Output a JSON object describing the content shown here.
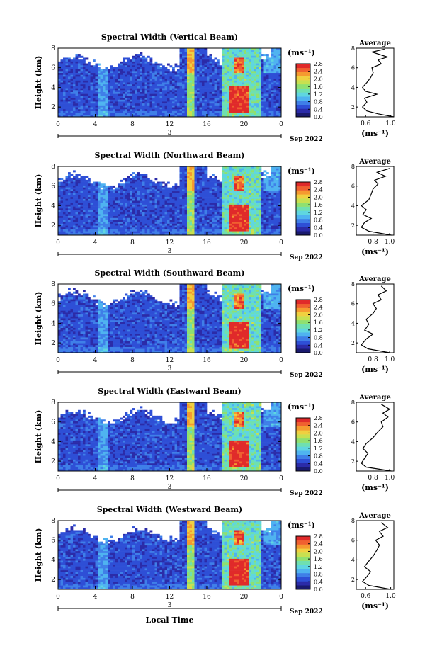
{
  "figure": {
    "xlabel_bottom": "Local Time",
    "cbar_unit": "(ms⁻¹)",
    "date_label": "Sep 2022",
    "day_label": "3",
    "avg_title": "Average",
    "avg_xlabel": "(ms⁻¹)",
    "height_label": "Height (km)"
  },
  "colormap": [
    "#1a1a6e",
    "#2b2ba8",
    "#2e4fd6",
    "#3f7fe8",
    "#4fb3f0",
    "#5fd6e0",
    "#6fe0b0",
    "#8fe070",
    "#c8e050",
    "#f0d040",
    "#f59a30",
    "#f06030",
    "#e02a2a"
  ],
  "chart_data": [
    {
      "type": "heatmap",
      "title": "Spectral Width (Vertical Beam)",
      "xlabel": "",
      "ylabel": "Height (km)",
      "x_ticks": [
        "0",
        "4",
        "8",
        "12",
        "16",
        "20",
        "0"
      ],
      "y_ticks": [
        "2",
        "4",
        "6",
        "8"
      ],
      "xlim": [
        0,
        24
      ],
      "ylim": [
        1,
        8
      ],
      "cbar_ticks": [
        "0.0",
        "0.4",
        "0.8",
        "1.2",
        "1.6",
        "2.0",
        "2.4",
        "2.8"
      ],
      "cbar_range": [
        0,
        2.8
      ],
      "average": {
        "x_ticks": [
          "0.6",
          "1.0"
        ],
        "xlim": [
          0.45,
          1.05
        ],
        "ylim": [
          1,
          8
        ],
        "profile": [
          [
            1.05,
            1.0
          ],
          [
            0.8,
            1.3
          ],
          [
            0.62,
            1.6
          ],
          [
            0.55,
            2.0
          ],
          [
            0.62,
            2.5
          ],
          [
            0.58,
            2.9
          ],
          [
            0.78,
            3.3
          ],
          [
            0.6,
            3.6
          ],
          [
            0.55,
            4.0
          ],
          [
            0.62,
            4.5
          ],
          [
            0.68,
            5.0
          ],
          [
            0.72,
            5.5
          ],
          [
            0.7,
            6.0
          ],
          [
            0.85,
            6.4
          ],
          [
            0.8,
            6.8
          ],
          [
            0.95,
            7.1
          ],
          [
            0.7,
            7.6
          ],
          [
            0.9,
            7.9
          ]
        ]
      }
    },
    {
      "type": "heatmap",
      "title": "Spectral Width (Northward Beam)",
      "xlabel": "",
      "ylabel": "Height (km)",
      "x_ticks": [
        "0",
        "4",
        "8",
        "12",
        "16",
        "20",
        "0"
      ],
      "y_ticks": [
        "2",
        "4",
        "6",
        "8"
      ],
      "xlim": [
        0,
        24
      ],
      "ylim": [
        1,
        8
      ],
      "cbar_ticks": [
        "0.0",
        "0.4",
        "0.8",
        "1.2",
        "1.6",
        "2.0",
        "2.4",
        "2.8"
      ],
      "cbar_range": [
        0,
        2.8
      ],
      "average": {
        "x_ticks": [
          "0.8",
          "1.0"
        ],
        "xlim": [
          0.6,
          1.05
        ],
        "ylim": [
          1,
          8
        ],
        "profile": [
          [
            1.02,
            1.0
          ],
          [
            0.75,
            1.4
          ],
          [
            0.66,
            1.8
          ],
          [
            0.7,
            2.3
          ],
          [
            0.78,
            2.7
          ],
          [
            0.68,
            3.1
          ],
          [
            0.72,
            3.6
          ],
          [
            0.66,
            4.0
          ],
          [
            0.75,
            4.6
          ],
          [
            0.78,
            5.2
          ],
          [
            0.8,
            5.7
          ],
          [
            0.86,
            6.2
          ],
          [
            0.82,
            6.6
          ],
          [
            0.95,
            7.0
          ],
          [
            0.85,
            7.4
          ],
          [
            1.0,
            7.8
          ]
        ]
      }
    },
    {
      "type": "heatmap",
      "title": "Spectral Width (Southward Beam)",
      "xlabel": "",
      "ylabel": "Height (km)",
      "x_ticks": [
        "0",
        "4",
        "8",
        "12",
        "16",
        "20",
        "0"
      ],
      "y_ticks": [
        "2",
        "4",
        "6",
        "8"
      ],
      "xlim": [
        0,
        24
      ],
      "ylim": [
        1,
        8
      ],
      "cbar_ticks": [
        "0.0",
        "0.4",
        "0.8",
        "1.2",
        "1.6",
        "2.0",
        "2.4",
        "2.8"
      ],
      "cbar_range": [
        0,
        2.8
      ],
      "average": {
        "x_ticks": [
          "0.8",
          "1.0"
        ],
        "xlim": [
          0.6,
          1.05
        ],
        "ylim": [
          1,
          8
        ],
        "profile": [
          [
            1.0,
            1.0
          ],
          [
            0.74,
            1.4
          ],
          [
            0.66,
            1.8
          ],
          [
            0.72,
            2.4
          ],
          [
            0.8,
            2.9
          ],
          [
            0.7,
            3.3
          ],
          [
            0.75,
            3.9
          ],
          [
            0.72,
            4.4
          ],
          [
            0.8,
            5.0
          ],
          [
            0.84,
            5.5
          ],
          [
            0.8,
            6.0
          ],
          [
            0.9,
            6.4
          ],
          [
            0.86,
            6.9
          ],
          [
            0.96,
            7.3
          ],
          [
            0.9,
            7.8
          ]
        ]
      }
    },
    {
      "type": "heatmap",
      "title": "Spectral Width (Eastward Beam)",
      "xlabel": "",
      "ylabel": "Height (km)",
      "x_ticks": [
        "0",
        "4",
        "8",
        "12",
        "16",
        "20",
        "0"
      ],
      "y_ticks": [
        "2",
        "4",
        "6",
        "8"
      ],
      "xlim": [
        0,
        24
      ],
      "ylim": [
        1,
        8
      ],
      "cbar_ticks": [
        "0.0",
        "0.4",
        "0.8",
        "1.2",
        "1.6",
        "2.0",
        "2.4",
        "2.8"
      ],
      "cbar_range": [
        0,
        2.8
      ],
      "average": {
        "x_ticks": [
          "0.8",
          "1.0"
        ],
        "xlim": [
          0.6,
          1.05
        ],
        "ylim": [
          1,
          8
        ],
        "profile": [
          [
            1.02,
            1.0
          ],
          [
            0.72,
            1.4
          ],
          [
            0.66,
            1.8
          ],
          [
            0.7,
            2.3
          ],
          [
            0.74,
            2.8
          ],
          [
            0.68,
            3.3
          ],
          [
            0.72,
            3.8
          ],
          [
            0.8,
            4.4
          ],
          [
            0.86,
            5.0
          ],
          [
            0.92,
            5.5
          ],
          [
            0.9,
            6.0
          ],
          [
            0.98,
            6.5
          ],
          [
            0.92,
            6.9
          ],
          [
            1.0,
            7.3
          ],
          [
            0.9,
            7.8
          ]
        ]
      }
    },
    {
      "type": "heatmap",
      "title": "Spectral Width (Westward Beam)",
      "xlabel": "Local Time",
      "ylabel": "Height (km)",
      "x_ticks": [
        "0",
        "4",
        "8",
        "12",
        "16",
        "20",
        "0"
      ],
      "y_ticks": [
        "2",
        "4",
        "6",
        "8"
      ],
      "xlim": [
        0,
        24
      ],
      "ylim": [
        1,
        8
      ],
      "cbar_ticks": [
        "0.0",
        "0.4",
        "0.8",
        "1.2",
        "1.6",
        "2.0",
        "2.4",
        "2.8"
      ],
      "cbar_range": [
        0,
        2.8
      ],
      "average": {
        "x_ticks": [
          "0.6",
          "1.0"
        ],
        "xlim": [
          0.45,
          1.05
        ],
        "ylim": [
          1,
          8
        ],
        "profile": [
          [
            1.0,
            1.0
          ],
          [
            0.65,
            1.4
          ],
          [
            0.55,
            1.8
          ],
          [
            0.62,
            2.3
          ],
          [
            0.68,
            2.8
          ],
          [
            0.58,
            3.3
          ],
          [
            0.64,
            3.8
          ],
          [
            0.72,
            4.4
          ],
          [
            0.78,
            5.0
          ],
          [
            0.82,
            5.5
          ],
          [
            0.76,
            6.0
          ],
          [
            0.88,
            6.4
          ],
          [
            0.82,
            6.9
          ],
          [
            0.95,
            7.3
          ],
          [
            0.85,
            7.8
          ]
        ]
      }
    }
  ]
}
